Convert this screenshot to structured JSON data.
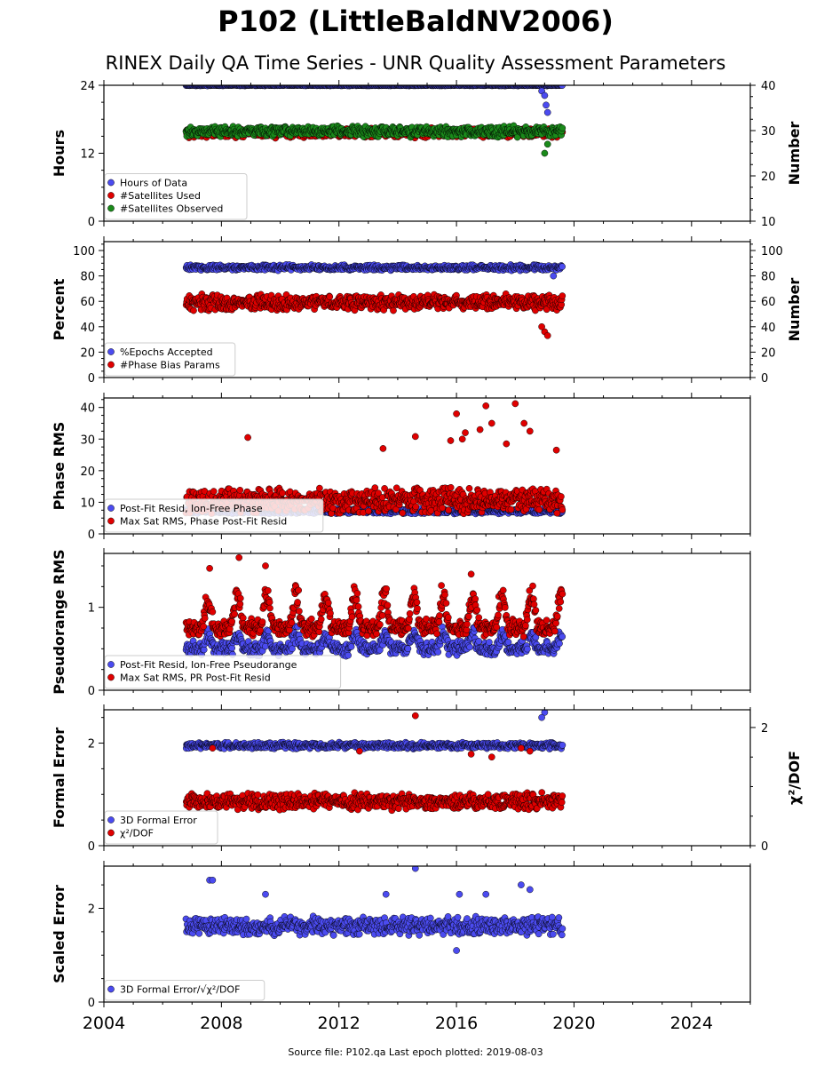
{
  "figure": {
    "title": "P102 (LittleBaldNV2006)",
    "subtitle": "RINEX Daily QA Time Series - UNR Quality Assessment Parameters",
    "footer": "Source file: P102.qa Last epoch plotted: 2019-08-03"
  },
  "chart_data": [
    {
      "type": "scatter",
      "ylabel": "Hours",
      "ylabel_right": "Number",
      "xlim": [
        2004,
        2026
      ],
      "ylim": [
        0,
        24
      ],
      "yticks": [
        "0",
        "12",
        "24"
      ],
      "ylim_right": [
        10,
        40
      ],
      "yticks_right": [
        "10",
        "20",
        "30",
        "40"
      ],
      "legend_loc": "lower-left",
      "series": [
        {
          "name": "Hours of Data",
          "color": "#4b4bf0",
          "axis": "left",
          "x_start": 2006.8,
          "x_end": 2019.6,
          "base": 24.0,
          "spread": 0.1,
          "extra": [
            [
              2018.9,
              23.0
            ],
            [
              2019.0,
              22.2
            ],
            [
              2019.05,
              20.5
            ],
            [
              2019.1,
              19.2
            ]
          ]
        },
        {
          "name": "#Satellites Used",
          "color": "#e00000",
          "axis": "right",
          "x_start": 2006.8,
          "x_end": 2019.6,
          "base": 29.5,
          "spread": 1.2,
          "extra": [
            [
              2009.1,
              30.0
            ]
          ]
        },
        {
          "name": "#Satellites Observed",
          "color": "#1a8a1a",
          "axis": "right",
          "x_start": 2006.8,
          "x_end": 2019.6,
          "base": 29.8,
          "spread": 1.3,
          "extra": [
            [
              2019.0,
              25.0
            ],
            [
              2019.1,
              27.0
            ]
          ]
        }
      ]
    },
    {
      "type": "scatter",
      "ylabel": "Percent",
      "ylabel_right": "Number",
      "xlim": [
        2004,
        2026
      ],
      "ylim": [
        0,
        107
      ],
      "yticks": [
        "0",
        "20",
        "40",
        "60",
        "80",
        "100"
      ],
      "ylim_right": [
        0,
        107
      ],
      "yticks_right": [
        "0",
        "20",
        "40",
        "60",
        "80",
        "100"
      ],
      "legend_loc": "lower-left",
      "series": [
        {
          "name": "%Epochs Accepted",
          "color": "#4b4bf0",
          "axis": "left",
          "x_start": 2006.8,
          "x_end": 2019.6,
          "base": 86.5,
          "spread": 2.5,
          "extra": [
            [
              2019.3,
              80.0
            ]
          ]
        },
        {
          "name": "#Phase Bias Params",
          "color": "#e00000",
          "axis": "right",
          "x_start": 2006.8,
          "x_end": 2019.6,
          "base": 59.0,
          "spread": 7.0,
          "extra": [
            [
              2019.0,
              36.0
            ],
            [
              2019.1,
              33.0
            ],
            [
              2018.9,
              40.0
            ]
          ]
        }
      ]
    },
    {
      "type": "scatter",
      "ylabel": "Phase RMS",
      "xlim": [
        2004,
        2026
      ],
      "ylim": [
        0,
        43
      ],
      "yticks": [
        "0",
        "10",
        "20",
        "30",
        "40"
      ],
      "legend_loc": "lower-left",
      "series": [
        {
          "name": "Post-Fit Resid, Ion-Free Phase",
          "color": "#4b4bf0",
          "x_start": 2006.8,
          "x_end": 2019.6,
          "base": 7.2,
          "spread": 0.9,
          "extra": []
        },
        {
          "name": "Max Sat RMS, Phase Post-Fit Resid",
          "color": "#e00000",
          "x_start": 2006.8,
          "x_end": 2019.6,
          "base": 10.5,
          "spread": 4.5,
          "extra": [
            [
              2008.9,
              30.5
            ],
            [
              2014.6,
              30.8
            ],
            [
              2016.0,
              38.0
            ],
            [
              2016.3,
              32.0
            ],
            [
              2016.8,
              33.0
            ],
            [
              2017.0,
              40.5
            ],
            [
              2017.2,
              35.0
            ],
            [
              2018.0,
              41.2
            ],
            [
              2018.3,
              35.0
            ],
            [
              2018.5,
              32.5
            ],
            [
              2019.4,
              26.5
            ],
            [
              2015.8,
              29.5
            ],
            [
              2016.2,
              30.0
            ],
            [
              2017.7,
              28.5
            ],
            [
              2013.5,
              27.0
            ]
          ]
        }
      ]
    },
    {
      "type": "scatter",
      "ylabel": "Pseudorange RMS",
      "xlim": [
        2004,
        2026
      ],
      "ylim": [
        0,
        1.65
      ],
      "yticks": [
        "0",
        "1"
      ],
      "legend_loc": "lower-left",
      "series": [
        {
          "name": "Post-Fit Resid, Ion-Free Pseudorange",
          "color": "#4b4bf0",
          "x_start": 2006.8,
          "x_end": 2019.6,
          "base": 0.5,
          "spread": 0.1,
          "seasonal": 0.2,
          "extra": []
        },
        {
          "name": "Max Sat RMS, PR Post-Fit Resid",
          "color": "#e00000",
          "x_start": 2006.8,
          "x_end": 2019.6,
          "base": 0.75,
          "spread": 0.12,
          "seasonal": 0.45,
          "extra": [
            [
              2008.6,
              1.6
            ],
            [
              2009.5,
              1.5
            ],
            [
              2007.6,
              1.47
            ],
            [
              2016.5,
              1.4
            ]
          ]
        }
      ]
    },
    {
      "type": "scatter",
      "ylabel": "Formal Error",
      "ylabel_right": "χ²/DOF",
      "xlim": [
        2004,
        2026
      ],
      "ylim": [
        0,
        2.65
      ],
      "yticks": [
        "0",
        "2"
      ],
      "ylim_right": [
        0,
        2.3
      ],
      "yticks_right": [
        "0",
        "2"
      ],
      "legend_loc": "lower-left",
      "series": [
        {
          "name": "3D Formal Error",
          "color": "#4b4bf0",
          "axis": "left",
          "x_start": 2006.8,
          "x_end": 2019.6,
          "base": 1.95,
          "spread": 0.07,
          "extra": [
            [
              2019.0,
              2.6
            ],
            [
              2018.9,
              2.5
            ]
          ]
        },
        {
          "name": "χ²/DOF",
          "color": "#e00000",
          "axis": "right",
          "x_start": 2006.8,
          "x_end": 2019.6,
          "base": 0.75,
          "spread": 0.16,
          "extra": [
            [
              2014.6,
              2.2
            ],
            [
              2007.7,
              1.65
            ],
            [
              2012.7,
              1.6
            ],
            [
              2016.5,
              1.55
            ],
            [
              2017.2,
              1.5
            ],
            [
              2018.2,
              1.65
            ],
            [
              2018.5,
              1.6
            ]
          ]
        }
      ]
    },
    {
      "type": "scatter",
      "ylabel": "Scaled Error",
      "xlim": [
        2004,
        2026
      ],
      "ylim": [
        0,
        2.9
      ],
      "yticks": [
        "0",
        "2"
      ],
      "xticks": [
        "2004",
        "2008",
        "2012",
        "2016",
        "2020",
        "2024"
      ],
      "legend_loc": "lower-left",
      "series": [
        {
          "name": "3D Formal Error/√χ²/DOF",
          "color": "#4b4bf0",
          "x_start": 2006.8,
          "x_end": 2019.6,
          "base": 1.62,
          "spread": 0.22,
          "extra": [
            [
              2014.6,
              2.85
            ],
            [
              2007.6,
              2.6
            ],
            [
              2007.7,
              2.6
            ],
            [
              2018.2,
              2.5
            ],
            [
              2018.5,
              2.4
            ],
            [
              2016.0,
              1.1
            ],
            [
              2013.6,
              2.3
            ],
            [
              2009.5,
              2.3
            ],
            [
              2016.1,
              2.3
            ],
            [
              2017.0,
              2.3
            ]
          ]
        }
      ]
    }
  ]
}
